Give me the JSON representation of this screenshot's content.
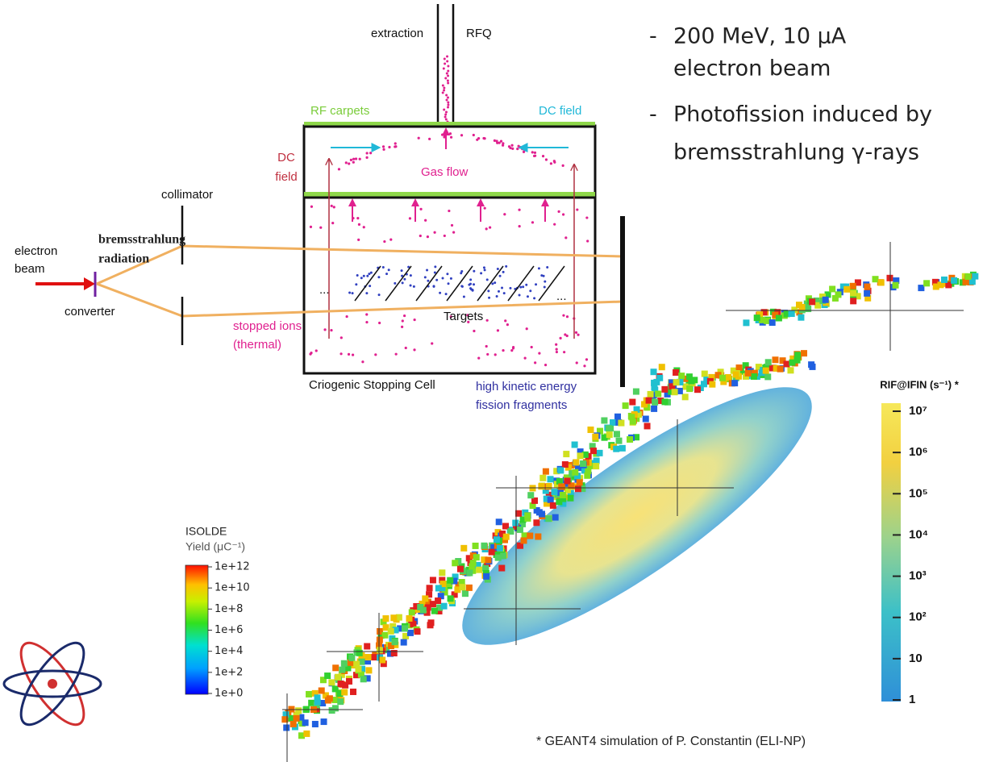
{
  "diagram": {
    "extraction": "extraction",
    "rfq": "RFQ",
    "rf_carpets": "RF carpets",
    "dc_field_top": "DC field",
    "dc_field_side": [
      "DC",
      "field"
    ],
    "gas_flow": "Gas flow",
    "collimator": "collimator",
    "electron_beam": [
      "electron",
      "beam"
    ],
    "bremsstrahlung": [
      "bremsstrahlung",
      "radiation"
    ],
    "converter": "converter",
    "stopped_ions": [
      "stopped ions",
      "(thermal)"
    ],
    "targets": "Targets",
    "ellipsis_left": "...",
    "ellipsis_right": "...",
    "cell": "Criogenic Stopping Cell",
    "fragments": [
      "high kinetic energy",
      "fission fragments"
    ]
  },
  "bullets": [
    [
      "200 MeV, 10 μA",
      "electron beam"
    ],
    [
      "Photofission induced by",
      "bremsstrahlung γ-rays"
    ]
  ],
  "isolde_legend": {
    "title": "ISOLDE",
    "subtitle": "Yield (μC⁻¹)",
    "ticks": [
      "1e+12",
      "1e+10",
      "1e+8",
      "1e+6",
      "1e+4",
      "1e+2",
      "1e+0"
    ]
  },
  "rif_legend": {
    "title": "RIF@IFIN (s⁻¹) *",
    "ticks": [
      "10⁷",
      "10⁶",
      "10⁵",
      "10⁴",
      "10³",
      "10²",
      "10",
      "1"
    ]
  },
  "footnote": "* GEANT4 simulation of P. Constantin (ELI-NP)"
}
